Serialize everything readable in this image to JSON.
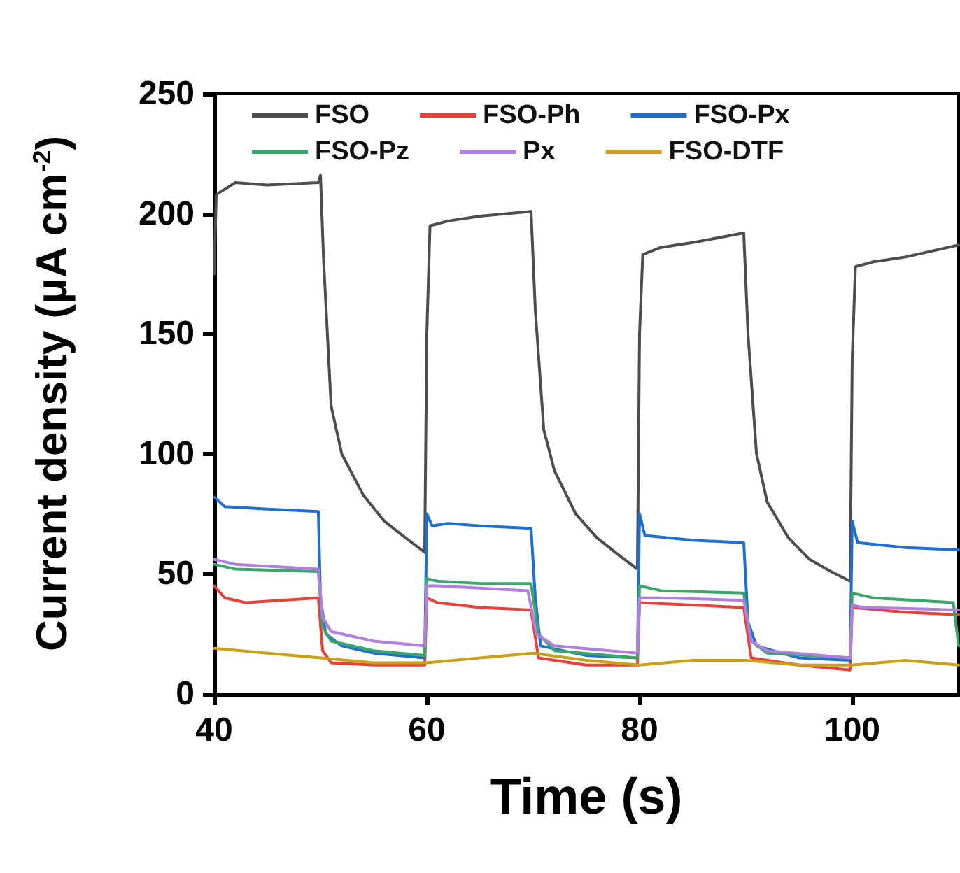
{
  "chart_data": {
    "type": "line",
    "xlabel": "Time (s)",
    "ylabel": "Current density (μA cm$^{-2}$)",
    "xlim": [
      40,
      110
    ],
    "xticks": [
      40,
      60,
      80,
      100
    ],
    "ylim": [
      0,
      250
    ],
    "yticks": [
      0,
      50,
      100,
      150,
      200,
      250
    ],
    "grid": false,
    "legend": "top",
    "marker": "none",
    "line_style": "solid",
    "series": [
      {
        "name": "FSO",
        "color": "#4d4d4d",
        "x": [
          40,
          40.2,
          42,
          45,
          49.8,
          50,
          50.3,
          51,
          52,
          54,
          56,
          58,
          59.8,
          60,
          60.3,
          62,
          65,
          69.8,
          70.2,
          71,
          72,
          74,
          76,
          78,
          79.8,
          80,
          80.3,
          82,
          85,
          89.8,
          90.2,
          91,
          92,
          94,
          96,
          98,
          99.8,
          100,
          100.3,
          102,
          105,
          110
        ],
        "values": [
          175,
          208,
          213,
          212,
          213,
          216,
          180,
          120,
          100,
          83,
          72,
          65,
          59,
          150,
          195,
          197,
          199,
          201,
          160,
          110,
          93,
          75,
          65,
          58,
          52,
          150,
          183,
          186,
          188,
          192,
          150,
          100,
          80,
          65,
          56,
          51,
          47,
          140,
          178,
          180,
          182,
          187
        ]
      },
      {
        "name": "FSO-Ph",
        "color": "#e8413a",
        "x": [
          40,
          41,
          43,
          49.8,
          50.2,
          51,
          55,
          59.8,
          60,
          61,
          65,
          69.8,
          70.5,
          75,
          79.8,
          80,
          85,
          89.8,
          90.5,
          95,
          99.8,
          100,
          105,
          110
        ],
        "values": [
          45,
          40,
          38,
          40,
          18,
          13,
          12,
          12,
          40,
          38,
          36,
          35,
          15,
          12,
          12,
          38,
          37,
          36,
          15,
          12,
          10,
          36,
          34,
          33
        ]
      },
      {
        "name": "FSO-Px",
        "color": "#1f6fd1",
        "x": [
          40,
          41,
          45,
          49.8,
          50,
          50.5,
          52,
          55,
          59.8,
          60,
          60.5,
          62,
          65,
          69.8,
          70.2,
          70.7,
          75,
          79.8,
          80,
          80.5,
          85,
          89.8,
          90.2,
          91,
          95,
          99.8,
          100,
          100.5,
          105,
          110
        ],
        "values": [
          82,
          78,
          77,
          76,
          40,
          25,
          20,
          17,
          15,
          75,
          70,
          71,
          70,
          69,
          40,
          20,
          16,
          15,
          75,
          66,
          64,
          63,
          30,
          20,
          15,
          14,
          72,
          63,
          61,
          60
        ]
      },
      {
        "name": "FSO-Pz",
        "color": "#3aa66b",
        "x": [
          40,
          42,
          49.8,
          50.2,
          51,
          55,
          59.8,
          60,
          61,
          65,
          69.8,
          70.5,
          72,
          79.8,
          80,
          82,
          89.8,
          90.5,
          92,
          99.8,
          100,
          102,
          109.5,
          110
        ],
        "values": [
          54,
          52,
          51,
          28,
          22,
          18,
          16,
          48,
          47,
          46,
          46,
          25,
          18,
          15,
          45,
          43,
          42,
          22,
          17,
          15,
          42,
          40,
          38,
          20
        ]
      },
      {
        "name": "Px",
        "color": "#b07fe0",
        "x": [
          40,
          42,
          49.8,
          50.2,
          51,
          55,
          59.8,
          60,
          61,
          69.5,
          70.3,
          72,
          79.8,
          80,
          82,
          89.8,
          90.5,
          92,
          99.8,
          100,
          101,
          110
        ],
        "values": [
          56,
          54,
          52,
          32,
          26,
          22,
          20,
          45,
          45,
          43,
          25,
          20,
          17,
          40,
          40,
          39,
          22,
          18,
          15,
          37,
          36,
          35
        ]
      },
      {
        "name": "FSO-DTF",
        "color": "#c9a018",
        "x": [
          40,
          45,
          50,
          55,
          60,
          65,
          70,
          75,
          80,
          85,
          90,
          95,
          100,
          105,
          110
        ],
        "values": [
          19,
          17,
          15,
          13,
          13,
          15,
          17,
          14,
          12,
          14,
          14,
          12,
          12,
          14,
          12
        ]
      }
    ]
  }
}
